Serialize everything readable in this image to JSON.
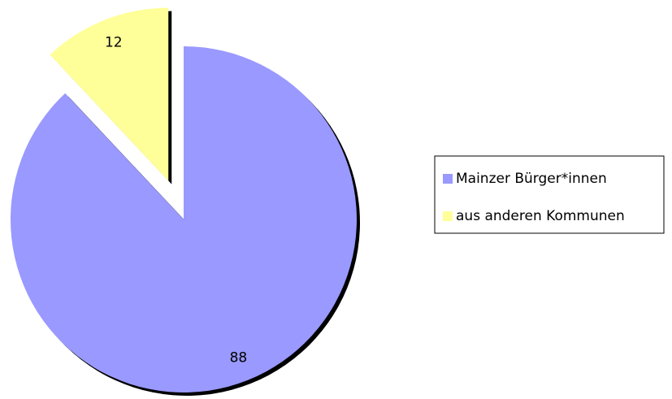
{
  "chart_data": {
    "type": "pie",
    "categories": [
      "Mainzer Bürger*innen",
      "aus anderen Kommunen"
    ],
    "values": [
      88,
      12
    ],
    "colors": [
      "#9999ff",
      "#ffff99"
    ],
    "exploded": [
      false,
      true
    ],
    "legend": "right"
  }
}
